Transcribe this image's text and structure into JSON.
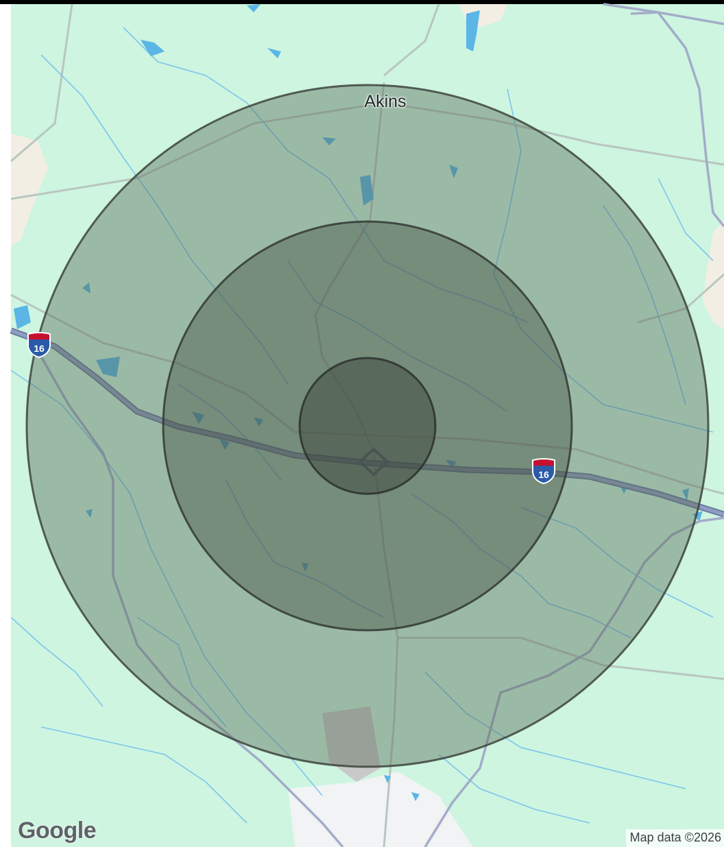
{
  "map": {
    "place_label": "Akins",
    "highway_shields": [
      {
        "route": "16",
        "type": "interstate-shield-icon"
      },
      {
        "route": "16",
        "type": "interstate-shield-icon"
      }
    ],
    "logo": "Google",
    "attribution": "Map data ©2026",
    "colors": {
      "land": "#cdf5e0",
      "water": "#5bb6e5",
      "interstate": "#8593b8",
      "radius_fill": "#556955",
      "radius_stroke": "#3d443d"
    },
    "radius_rings": [
      {
        "name": "outer-radius-ring"
      },
      {
        "name": "middle-radius-ring"
      },
      {
        "name": "inner-radius-ring"
      }
    ]
  }
}
